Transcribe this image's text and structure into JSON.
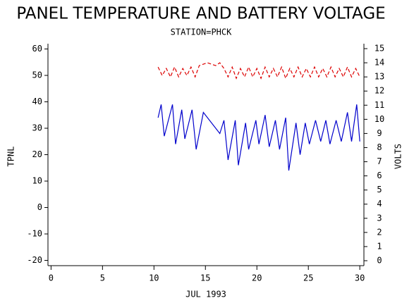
{
  "chart_data": {
    "type": "line",
    "title": "PANEL TEMPERATURE AND BATTERY VOLTAGE",
    "subtitle": "STATION=PHCK",
    "x_label": "JUL 1993",
    "y_label": "TPNL",
    "y2_label": "VOLTS",
    "xlim": [
      -0.3,
      30.4
    ],
    "xticks": [
      0,
      5,
      10,
      15,
      20,
      25,
      30
    ],
    "ylim": [
      -22,
      62
    ],
    "yticks": [
      -20,
      -10,
      0,
      10,
      20,
      30,
      40,
      50,
      60
    ],
    "y2lim": [
      -0.35,
      15.35
    ],
    "y2ticks": [
      0,
      1,
      2,
      3,
      4,
      5,
      6,
      7,
      8,
      9,
      10,
      11,
      12,
      13,
      14,
      15
    ],
    "grid": false,
    "series": [
      {
        "color": "#0000cc",
        "style": "solid",
        "x": [
          10.4,
          10.7,
          11.0,
          11.8,
          12.1,
          12.7,
          13.0,
          13.7,
          14.1,
          14.8,
          16.4,
          16.8,
          17.2,
          17.9,
          18.2,
          18.9,
          19.2,
          19.9,
          20.2,
          20.8,
          21.2,
          21.8,
          22.2,
          22.8,
          23.1,
          23.8,
          24.2,
          24.7,
          25.1,
          25.7,
          26.2,
          26.7,
          27.1,
          27.7,
          28.2,
          28.8,
          29.2,
          29.7,
          30.0
        ],
        "values": [
          34,
          39,
          27,
          39,
          24,
          37,
          26,
          37,
          22,
          36,
          28,
          33,
          18,
          33,
          16,
          32,
          22,
          33,
          24,
          35,
          23,
          33,
          22,
          34,
          14,
          32,
          20,
          32,
          24,
          33,
          25,
          33,
          24,
          33,
          25,
          36,
          25,
          39,
          25
        ]
      },
      {
        "color": "#dd0000",
        "style": "dashed",
        "axis": "y2",
        "x": [
          10.4,
          10.8,
          11.2,
          11.6,
          12.0,
          12.4,
          12.8,
          13.2,
          13.6,
          14.0,
          14.4,
          14.8,
          15.2,
          15.6,
          16.0,
          16.4,
          16.8,
          17.2,
          17.6,
          18.0,
          18.4,
          18.8,
          19.2,
          19.6,
          20.0,
          20.4,
          20.8,
          21.2,
          21.6,
          22.0,
          22.4,
          22.8,
          23.2,
          23.6,
          24.0,
          24.4,
          24.8,
          25.2,
          25.6,
          26.0,
          26.4,
          26.8,
          27.2,
          27.6,
          28.0,
          28.4,
          28.8,
          29.2,
          29.6,
          30.0
        ],
        "values": [
          13.7,
          13.1,
          13.6,
          13.0,
          13.7,
          13.0,
          13.6,
          13.1,
          13.7,
          13.0,
          13.8,
          13.9,
          14.0,
          13.9,
          13.8,
          14.0,
          13.6,
          13.0,
          13.7,
          12.9,
          13.6,
          13.0,
          13.7,
          13.0,
          13.6,
          12.9,
          13.7,
          13.0,
          13.6,
          13.0,
          13.7,
          12.9,
          13.6,
          13.0,
          13.7,
          13.0,
          13.6,
          13.0,
          13.7,
          13.0,
          13.6,
          13.0,
          13.7,
          13.0,
          13.6,
          13.0,
          13.7,
          13.0,
          13.6,
          13.0
        ]
      }
    ]
  }
}
